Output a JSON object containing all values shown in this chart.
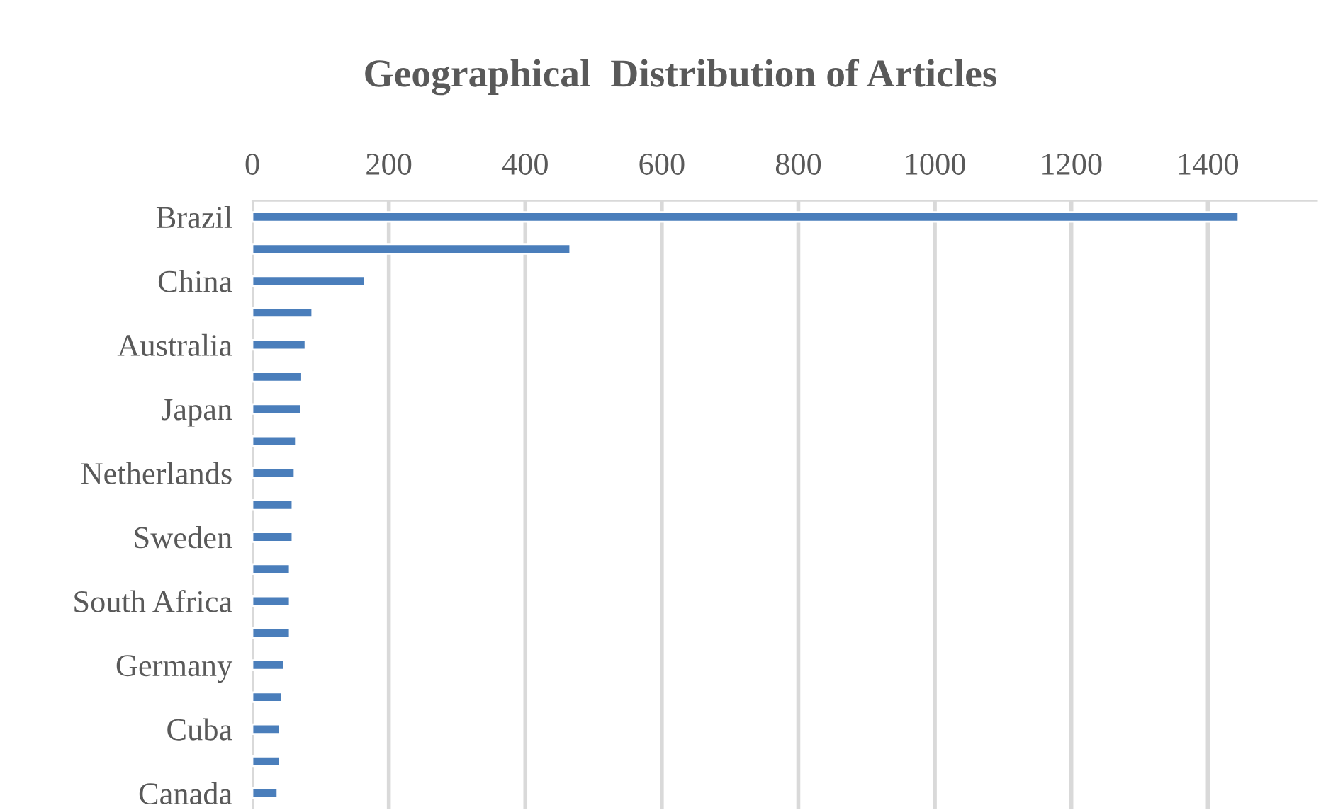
{
  "chart_data": {
    "type": "bar",
    "orientation": "horizontal",
    "title": "Geographical  Distribution of Articles",
    "categories": [
      "Brazil",
      null,
      "China",
      null,
      "Australia",
      null,
      "Japan",
      null,
      "Netherlands",
      null,
      "Sweden",
      null,
      "South Africa",
      null,
      "Germany",
      null,
      "Cuba",
      null,
      "Canada"
    ],
    "values": [
      1445,
      466,
      165,
      88,
      78,
      73,
      71,
      64,
      62,
      59,
      59,
      55,
      55,
      55,
      47,
      43,
      40,
      40,
      37
    ],
    "color": "#4a7ebb",
    "xlim": [
      0,
      1560
    ],
    "xticks": [
      0,
      200,
      400,
      600,
      800,
      1000,
      1200,
      1400
    ],
    "grid": "x",
    "legend": false
  }
}
